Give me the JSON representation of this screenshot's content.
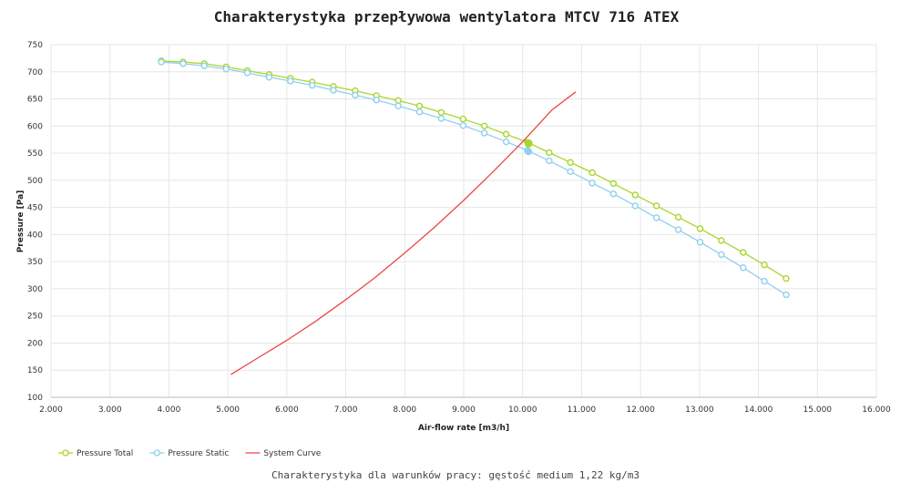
{
  "chart_data": {
    "type": "line",
    "title": "Charakterystyka przepływowa wentylatora MTCV 716 ATEX",
    "subtitle": "Charakterystyka dla warunków pracy: gęstość medium 1,22 kg/m3",
    "xlabel": "Air-flow rate [m3/h]",
    "ylabel": "Pressure [Pa]",
    "xlim": [
      2000,
      16000
    ],
    "ylim": [
      100,
      750
    ],
    "x_ticks": [
      "2.000",
      "3.000",
      "4.000",
      "5.000",
      "6.000",
      "7.000",
      "8.000",
      "9.000",
      "10.000",
      "11.000",
      "12.000",
      "13.000",
      "14.000",
      "15.000",
      "16.000"
    ],
    "y_ticks": [
      "100",
      "150",
      "200",
      "250",
      "300",
      "350",
      "400",
      "450",
      "500",
      "550",
      "600",
      "650",
      "700",
      "750"
    ],
    "grid": true,
    "legend_position": "bottom-left",
    "operating_point": {
      "x": 10100,
      "total": 568,
      "static": 553
    },
    "series": [
      {
        "name": "Pressure Total",
        "color": "#a8d62e",
        "marker": "circle",
        "x": [
          3870,
          4240,
          4600,
          4970,
          5330,
          5700,
          6060,
          6430,
          6790,
          7160,
          7520,
          7890,
          8250,
          8620,
          8990,
          9350,
          9720,
          10080,
          10450,
          10810,
          11180,
          11540,
          11910,
          12270,
          12640,
          13010,
          13370,
          13740,
          14100,
          14470
        ],
        "y": [
          720,
          718,
          715,
          709,
          702,
          695,
          688,
          681,
          673,
          665,
          656,
          647,
          637,
          625,
          613,
          600,
          585,
          570,
          551,
          533,
          514,
          494,
          473,
          453,
          432,
          411,
          389,
          367,
          344,
          319
        ]
      },
      {
        "name": "Pressure Static",
        "color": "#8fd0ee",
        "marker": "circle",
        "x": [
          3870,
          4240,
          4600,
          4970,
          5330,
          5700,
          6060,
          6430,
          6790,
          7160,
          7520,
          7890,
          8250,
          8620,
          8990,
          9350,
          9720,
          10080,
          10450,
          10810,
          11180,
          11540,
          11910,
          12270,
          12640,
          13010,
          13370,
          13740,
          14100,
          14470
        ],
        "y": [
          718,
          715,
          711,
          705,
          698,
          690,
          683,
          675,
          666,
          657,
          648,
          637,
          626,
          614,
          601,
          587,
          571,
          555,
          536,
          516,
          495,
          475,
          453,
          431,
          409,
          386,
          363,
          339,
          314,
          289
        ]
      },
      {
        "name": "System Curve",
        "color": "#ee4444",
        "marker": "none",
        "x": [
          5050,
          5500,
          6000,
          6500,
          7000,
          7500,
          8000,
          8500,
          9000,
          9500,
          10000,
          10500,
          10900
        ],
        "y": [
          142,
          172,
          205,
          241,
          280,
          321,
          366,
          413,
          463,
          516,
          571,
          630,
          663
        ]
      }
    ]
  }
}
